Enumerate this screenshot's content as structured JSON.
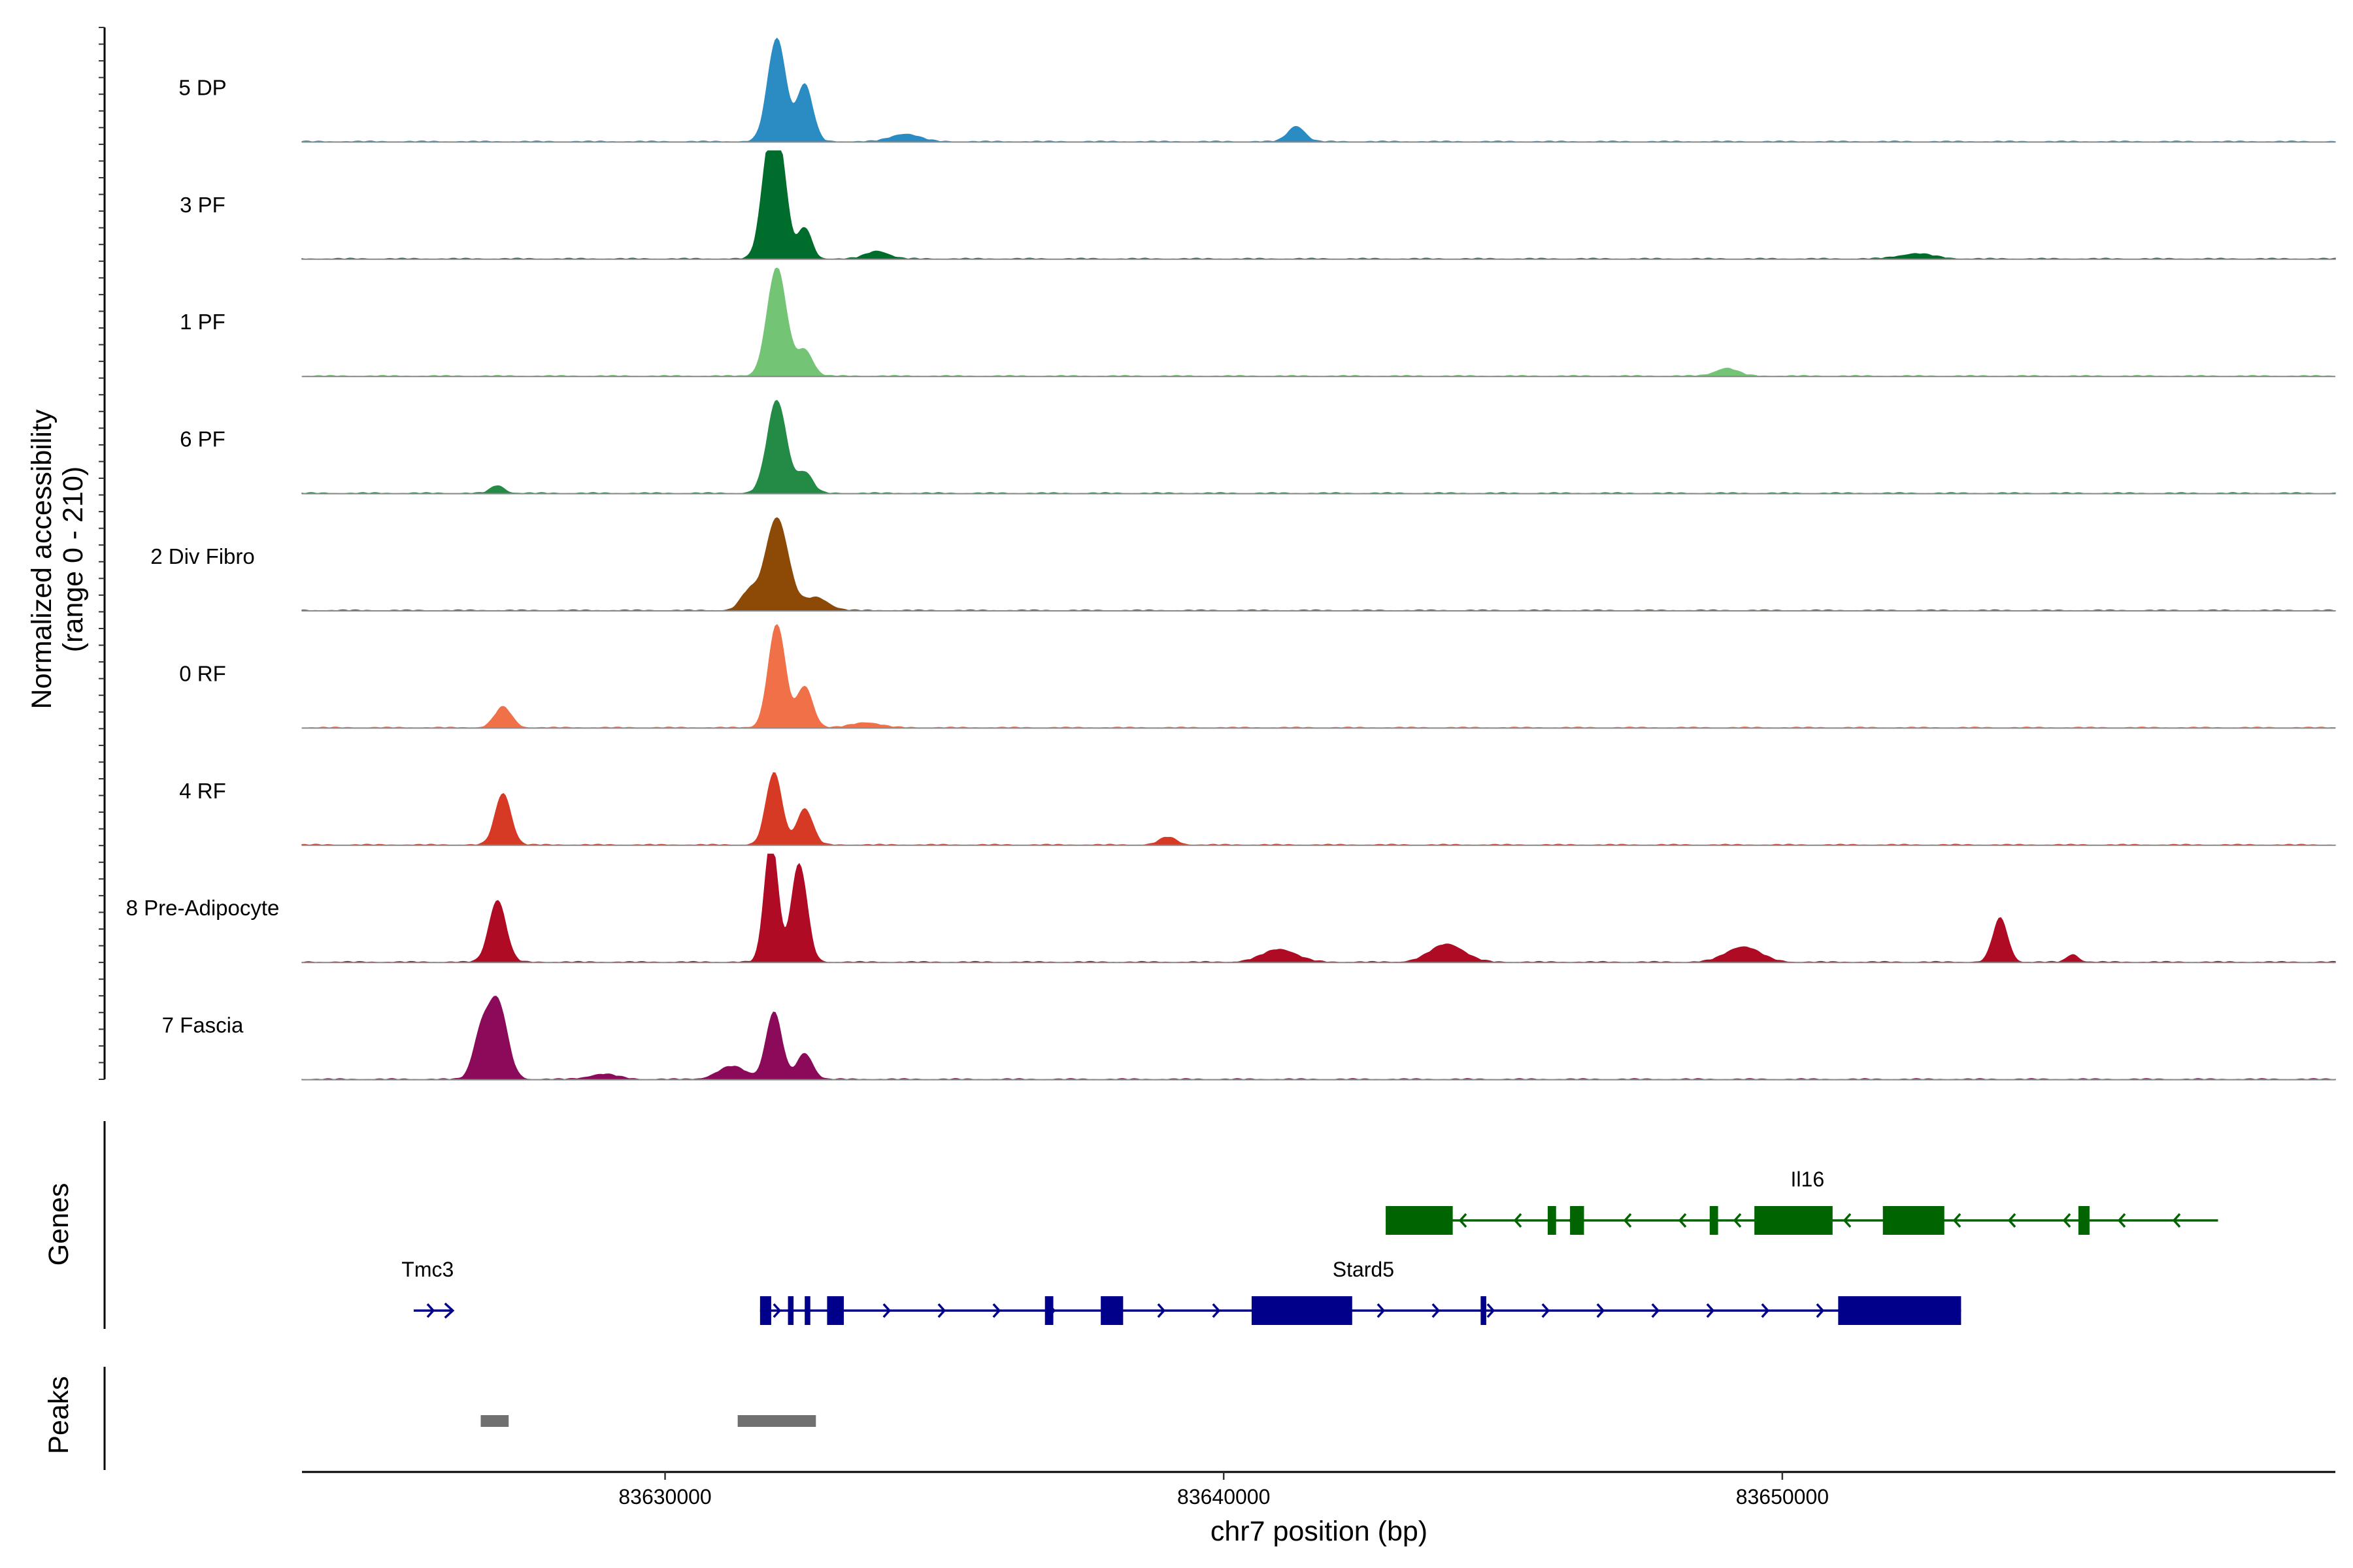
{
  "chart_data": {
    "type": "area",
    "title": "",
    "xlabel": "chr7 position (bp)",
    "ylabel": "Normalized accessibility",
    "ylabel_range": "(range 0 - 210)",
    "ylim": [
      0,
      210
    ],
    "x_range": [
      83623500,
      83659900
    ],
    "x_ticks": [
      83630000,
      83640000,
      83650000
    ],
    "x_tick_labels": [
      "83630000",
      "83640000",
      "83650000"
    ],
    "tracks": [
      {
        "name": "5 DP",
        "color": "#2B8CC4",
        "peaks": [
          [
            83632000,
            200,
            160
          ],
          [
            83632500,
            110,
            140
          ],
          [
            83634300,
            15,
            250
          ],
          [
            83641300,
            30,
            150
          ]
        ]
      },
      {
        "name": "3 PF",
        "color": "#006D2C",
        "peaks": [
          [
            83631850,
            175,
            140
          ],
          [
            83632050,
            180,
            140
          ],
          [
            83632500,
            60,
            120
          ],
          [
            83633800,
            15,
            200
          ],
          [
            83652400,
            10,
            300
          ]
        ]
      },
      {
        "name": "1 PF",
        "color": "#74C476",
        "peaks": [
          [
            83632000,
            210,
            170
          ],
          [
            83632500,
            50,
            140
          ],
          [
            83649000,
            15,
            200
          ]
        ]
      },
      {
        "name": "6 PF",
        "color": "#238B45",
        "peaks": [
          [
            83632000,
            180,
            170
          ],
          [
            83632500,
            40,
            140
          ],
          [
            83627000,
            15,
            120
          ]
        ]
      },
      {
        "name": "2 Div Fibro",
        "color": "#8C4A06",
        "peaks": [
          [
            83632000,
            180,
            200
          ],
          [
            83631500,
            35,
            150
          ],
          [
            83632700,
            25,
            220
          ]
        ]
      },
      {
        "name": "0 RF",
        "color": "#F07048",
        "peaks": [
          [
            83632000,
            200,
            150
          ],
          [
            83632500,
            80,
            140
          ],
          [
            83627100,
            40,
            150
          ],
          [
            83633600,
            10,
            250
          ]
        ]
      },
      {
        "name": "4 RF",
        "color": "#D63A24",
        "peaks": [
          [
            83627100,
            100,
            140
          ],
          [
            83631950,
            140,
            140
          ],
          [
            83632500,
            70,
            140
          ],
          [
            83639000,
            15,
            150
          ]
        ]
      },
      {
        "name": "8 Pre-Adipocyte",
        "color": "#B00B24",
        "peaks": [
          [
            83631900,
            240,
            120
          ],
          [
            83632400,
            190,
            140
          ],
          [
            83627000,
            120,
            150
          ],
          [
            83653900,
            85,
            130
          ],
          [
            83641000,
            25,
            300
          ],
          [
            83644000,
            35,
            300
          ],
          [
            83649300,
            30,
            300
          ],
          [
            83655200,
            15,
            100
          ]
        ]
      },
      {
        "name": "7 Fascia",
        "color": "#8B0A5A",
        "peaks": [
          [
            83627000,
            150,
            170
          ],
          [
            83626700,
            80,
            140
          ],
          [
            83631950,
            130,
            140
          ],
          [
            83632500,
            50,
            140
          ],
          [
            83631200,
            25,
            250
          ],
          [
            83628900,
            10,
            250
          ]
        ]
      }
    ],
    "genes": [
      {
        "name": "Il16",
        "strand": "-",
        "color": "#006400",
        "start": 83642900,
        "end": 83657800,
        "exons": [
          [
            83642900,
            83644100
          ],
          [
            83645800,
            83645950
          ],
          [
            83646200,
            83646450
          ],
          [
            83648700,
            83648850
          ],
          [
            83649500,
            83650900
          ],
          [
            83651800,
            83652900
          ],
          [
            83655300,
            83655500
          ]
        ]
      },
      {
        "name": "Stard5",
        "strand": "+",
        "color": "#00008B",
        "start": 83631700,
        "end": 83653200,
        "exons": [
          [
            83631700,
            83631900
          ],
          [
            83632200,
            83632300
          ],
          [
            83632500,
            83632600
          ],
          [
            83632900,
            83633200
          ],
          [
            83636800,
            83636950
          ],
          [
            83637800,
            83638200
          ],
          [
            83640500,
            83642300
          ],
          [
            83644600,
            83644700
          ],
          [
            83651000,
            83653200
          ]
        ]
      },
      {
        "name": "Tmc3",
        "strand": "+",
        "color": "#00008B",
        "start": 83625500,
        "end": 83626200,
        "exons": []
      }
    ],
    "peaks_track": [
      [
        83626700,
        83627200
      ],
      [
        83631300,
        83632700
      ]
    ],
    "panel_labels": {
      "genes": "Genes",
      "peaks": "Peaks"
    }
  }
}
